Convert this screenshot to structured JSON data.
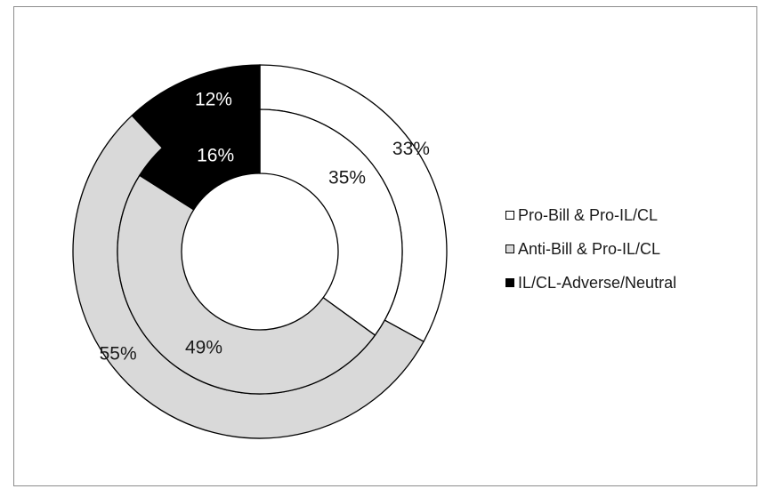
{
  "chart_data": {
    "type": "donut",
    "categories": [
      "Pro-Bill & Pro-IL/CL",
      "Anti-Bill & Pro-IL/CL",
      "IL/CL-Adverse/Neutral"
    ],
    "series": [
      {
        "ring": "outer",
        "values": [
          33,
          55,
          12
        ],
        "labels": [
          "33%",
          "55%",
          "12%"
        ]
      },
      {
        "ring": "inner",
        "values": [
          35,
          49,
          16
        ],
        "labels": [
          "35%",
          "49%",
          "16%"
        ]
      }
    ],
    "colors": [
      "#ffffff",
      "#d9d9d9",
      "#000000"
    ],
    "legend_position": "right"
  }
}
